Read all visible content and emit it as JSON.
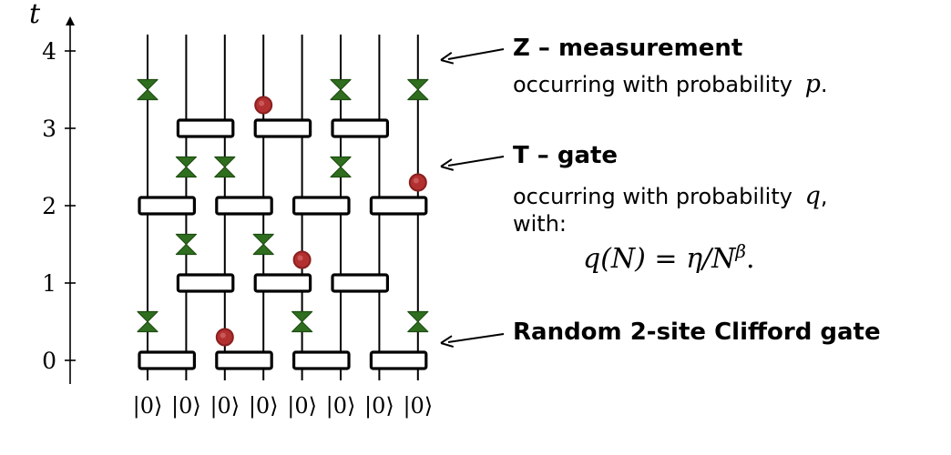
{
  "axis": {
    "label": "t",
    "ticks": [
      "0",
      "1",
      "2",
      "3",
      "4"
    ]
  },
  "inputs": [
    "|0⟩",
    "|0⟩",
    "|0⟩",
    "|0⟩",
    "|0⟩",
    "|0⟩",
    "|0⟩",
    "|0⟩"
  ],
  "annotations": {
    "z_measurement": {
      "title": "Z – measurement",
      "desc": "occurring with probability",
      "symbol": "p",
      "suffix": "."
    },
    "t_gate": {
      "title": "T – gate",
      "desc": "occurring with probability",
      "symbol": "q",
      "suffix": ",",
      "desc2": "with:",
      "formula": "q(N) = η/N",
      "formula_sup": "β",
      "formula_suffix": "."
    },
    "clifford": {
      "title": "Random 2-site Clifford gate"
    }
  },
  "colors": {
    "measurement": "#2f6e1e",
    "t_gate": "#b23030",
    "line": "#000000"
  },
  "circuit": {
    "wires": 8,
    "clifford_gates": [
      {
        "t": 0,
        "pair": [
          0,
          1
        ]
      },
      {
        "t": 0,
        "pair": [
          2,
          3
        ]
      },
      {
        "t": 0,
        "pair": [
          4,
          5
        ]
      },
      {
        "t": 0,
        "pair": [
          6,
          7
        ]
      },
      {
        "t": 1,
        "pair": [
          1,
          2
        ]
      },
      {
        "t": 1,
        "pair": [
          3,
          4
        ]
      },
      {
        "t": 1,
        "pair": [
          5,
          6
        ]
      },
      {
        "t": 2,
        "pair": [
          0,
          1
        ]
      },
      {
        "t": 2,
        "pair": [
          2,
          3
        ]
      },
      {
        "t": 2,
        "pair": [
          4,
          5
        ]
      },
      {
        "t": 2,
        "pair": [
          6,
          7
        ]
      },
      {
        "t": 3,
        "pair": [
          1,
          2
        ]
      },
      {
        "t": 3,
        "pair": [
          3,
          4
        ]
      },
      {
        "t": 3,
        "pair": [
          5,
          6
        ]
      }
    ],
    "measurements": [
      {
        "wire": 0,
        "t": 0.5
      },
      {
        "wire": 4,
        "t": 0.5
      },
      {
        "wire": 7,
        "t": 0.5
      },
      {
        "wire": 1,
        "t": 1.5
      },
      {
        "wire": 3,
        "t": 1.5
      },
      {
        "wire": 1,
        "t": 2.5
      },
      {
        "wire": 2,
        "t": 2.5
      },
      {
        "wire": 5,
        "t": 2.5
      },
      {
        "wire": 0,
        "t": 3.5
      },
      {
        "wire": 5,
        "t": 3.5
      },
      {
        "wire": 7,
        "t": 3.5
      }
    ],
    "t_gates": [
      {
        "wire": 2,
        "t": 0.3
      },
      {
        "wire": 4,
        "t": 1.3
      },
      {
        "wire": 7,
        "t": 2.3
      },
      {
        "wire": 3,
        "t": 3.3
      }
    ]
  }
}
